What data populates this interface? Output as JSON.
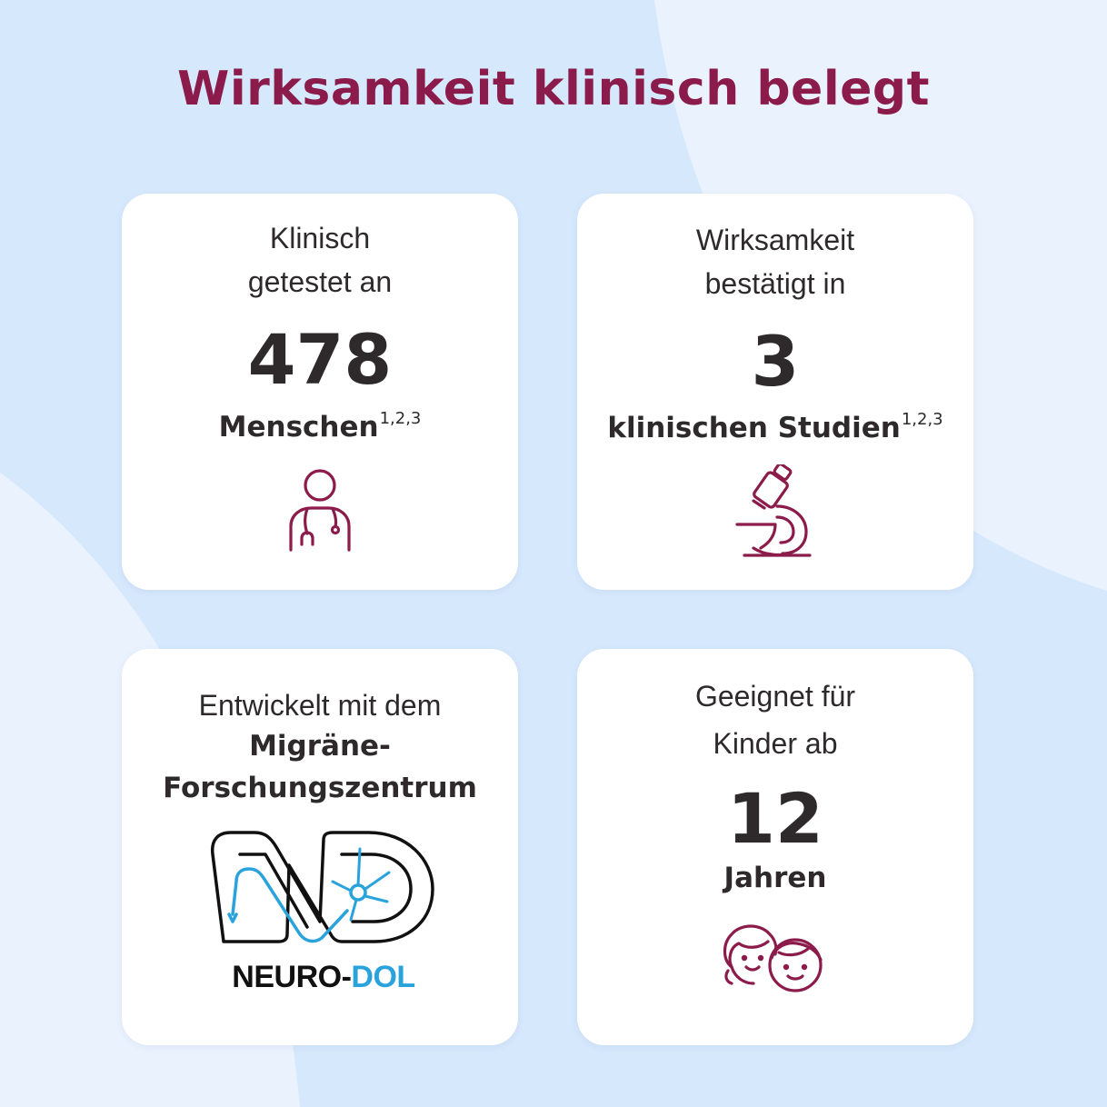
{
  "title": "Wirksamkeit klinisch belegt",
  "colors": {
    "title": "#8b1b4a",
    "icon": "#8b1b4a",
    "text": "#2e2a2b",
    "background": "#d6e8fc",
    "card": "#ffffff",
    "logo_blue": "#2aa3dc"
  },
  "cards": [
    {
      "lead": [
        "Klinisch",
        "getestet an"
      ],
      "number": "478",
      "unit": "Menschen",
      "footnote": "1,2,3",
      "icon": "doctor-stethoscope-icon"
    },
    {
      "lead": [
        "Wirksamkeit",
        "bestätigt in"
      ],
      "number": "3",
      "unit": "klinischen Studien",
      "footnote": "1,2,3",
      "icon": "microscope-icon"
    },
    {
      "lead": [
        "Entwickelt mit dem"
      ],
      "strong": [
        "Migräne-",
        "Forschungszentrum"
      ],
      "logo": {
        "name_a": "NEURO-",
        "name_b": "DOL",
        "icon": "neuro-dol-logo-icon"
      }
    },
    {
      "lead": [
        "Geeignet für",
        "Kinder ab"
      ],
      "number": "12",
      "unit": "Jahren",
      "icon": "children-faces-icon"
    }
  ]
}
